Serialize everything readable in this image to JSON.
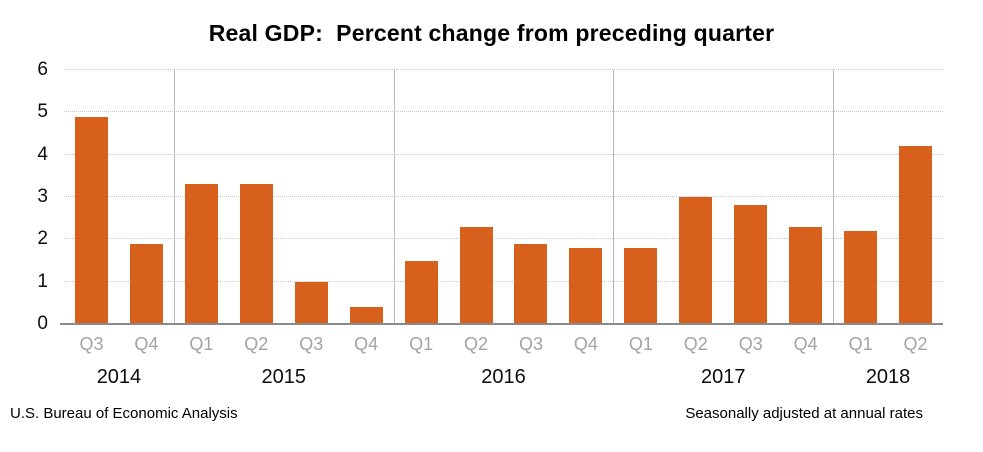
{
  "title": "Real GDP:  Percent change from preceding quarter",
  "footer": {
    "left": "U.S. Bureau of Economic Analysis",
    "right": "Seasonally adjusted at annual rates"
  },
  "colors": {
    "bar": "#d7601c",
    "gridline": "#c6c6c6",
    "baseline": "#8a8a8a",
    "year_separator": "#b9b9b9",
    "quarter_label": "#a3a3a3",
    "text": "#000000"
  },
  "chart_data": {
    "type": "bar",
    "title": "Real GDP:  Percent change from preceding quarter",
    "xlabel": "",
    "ylabel": "",
    "unit": "percent",
    "ylim": [
      0,
      6
    ],
    "yticks": [
      0,
      1,
      2,
      3,
      4,
      5,
      6
    ],
    "grid": "horizontal-dotted",
    "legend": "none",
    "categories": [
      "Q3",
      "Q4",
      "Q1",
      "Q2",
      "Q3",
      "Q4",
      "Q1",
      "Q2",
      "Q3",
      "Q4",
      "Q1",
      "Q2",
      "Q3",
      "Q4",
      "Q1",
      "Q2"
    ],
    "year_groups": [
      {
        "label": "2014",
        "quarters": 2
      },
      {
        "label": "2015",
        "quarters": 4
      },
      {
        "label": "2016",
        "quarters": 4
      },
      {
        "label": "2017",
        "quarters": 4
      },
      {
        "label": "2018",
        "quarters": 2
      }
    ],
    "values": [
      4.9,
      1.9,
      3.3,
      3.3,
      1.0,
      0.4,
      1.5,
      2.3,
      1.9,
      1.8,
      1.8,
      3.0,
      2.8,
      2.3,
      2.2,
      4.2
    ]
  }
}
